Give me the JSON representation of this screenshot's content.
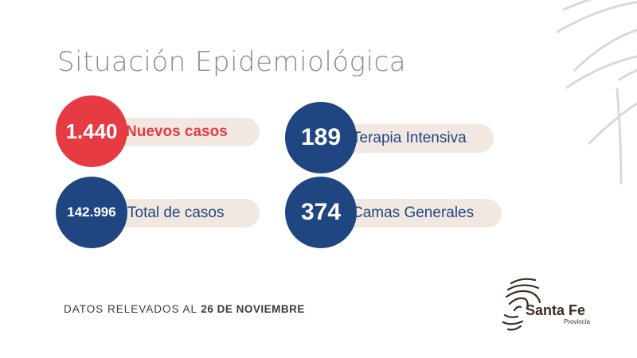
{
  "header": {
    "title": "Situación Epidemiológica"
  },
  "colors": {
    "red": "#e63b43",
    "navy": "#1f4680",
    "pill": "#f2e8e2",
    "brand": "#3d2b24"
  },
  "stats": [
    {
      "value": "1.440",
      "label": "Nuevos casos",
      "color": "red"
    },
    {
      "value": "189",
      "label": "Terapia Intensiva",
      "color": "navy"
    },
    {
      "value": "142.996",
      "label": "Total de casos",
      "color": "navy"
    },
    {
      "value": "374",
      "label": "Camas Generales",
      "color": "navy"
    }
  ],
  "footer": {
    "prefix": "DATOS RELEVADOS AL",
    "date": "26 DE NOVIEMBRE"
  },
  "logo": {
    "name": "Santa Fe",
    "sub": "Provincia"
  }
}
